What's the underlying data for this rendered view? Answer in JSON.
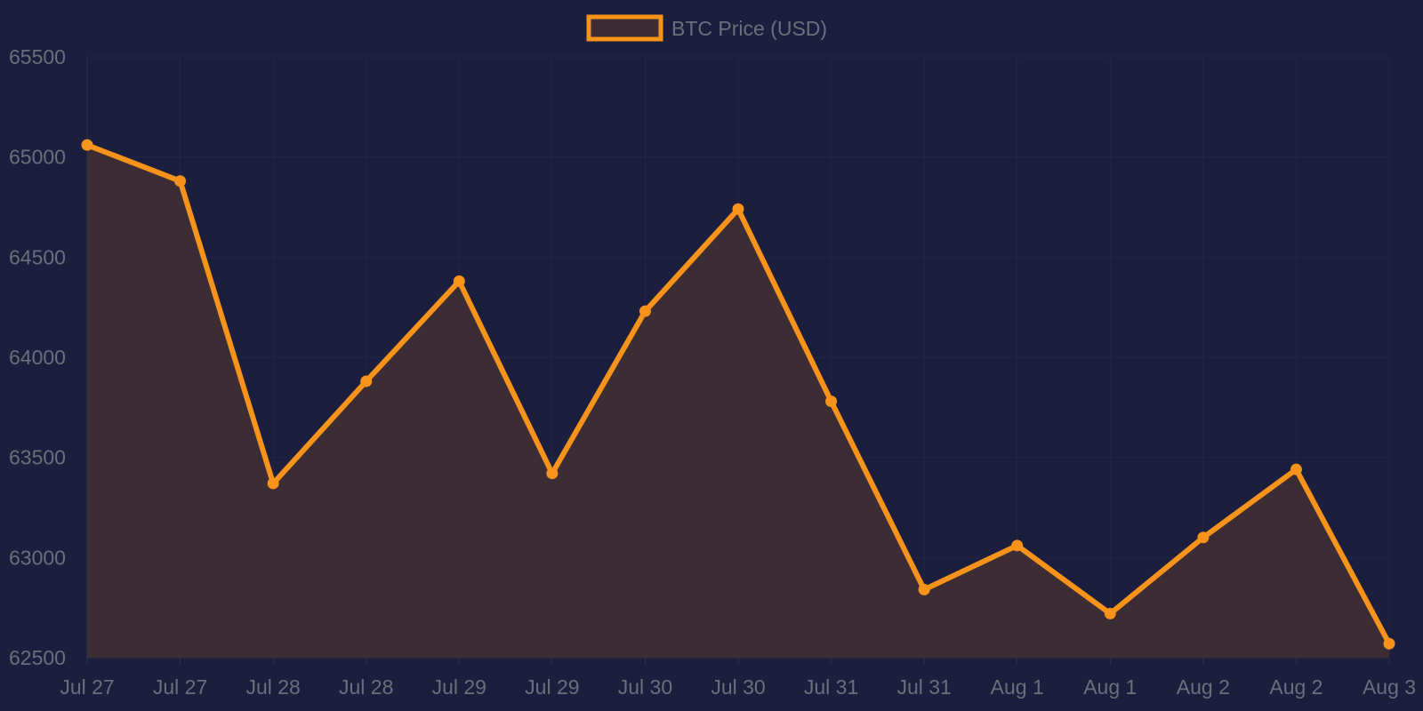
{
  "chart_data": {
    "type": "area",
    "legend": {
      "label": "BTC Price (USD)",
      "position": "top-center"
    },
    "categories": [
      "Jul 27",
      "Jul 27",
      "Jul 28",
      "Jul 28",
      "Jul 29",
      "Jul 29",
      "Jul 30",
      "Jul 30",
      "Jul 31",
      "Jul 31",
      "Aug 1",
      "Aug 1",
      "Aug 2",
      "Aug 2",
      "Aug 3"
    ],
    "series": [
      {
        "name": "BTC Price (USD)",
        "values": [
          65060,
          64880,
          63370,
          63880,
          64380,
          63420,
          64230,
          64740,
          63780,
          62840,
          63060,
          62720,
          63100,
          63440,
          62570
        ]
      }
    ],
    "ylim": [
      62500,
      65500
    ],
    "yticks": [
      "62500",
      "63000",
      "63500",
      "64000",
      "64500",
      "65000",
      "65500"
    ],
    "grid": true,
    "colors": {
      "line": "#f7931a",
      "fill": "#3b2d33",
      "background": "#1b1e3c"
    }
  }
}
